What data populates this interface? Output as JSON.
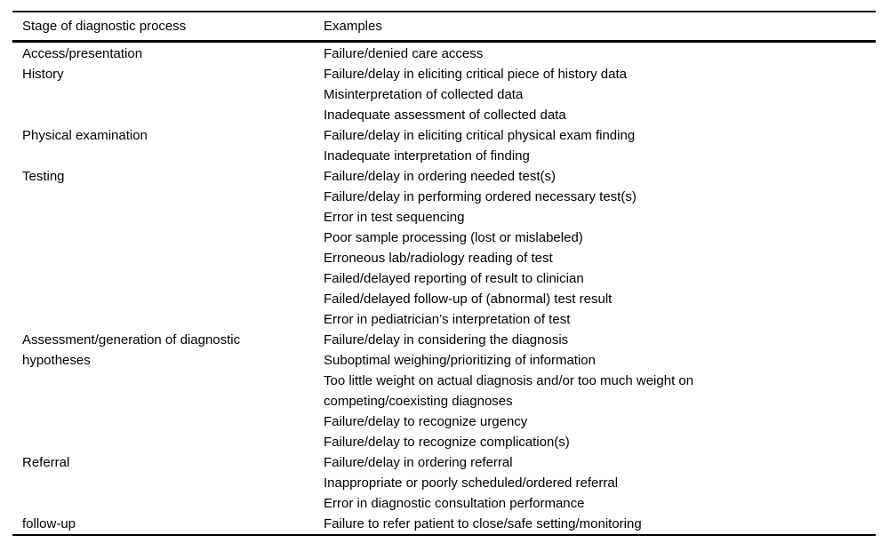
{
  "table": {
    "columns": [
      "Stage of diagnostic process",
      "Examples"
    ],
    "rows": [
      {
        "stage": "Access/presentation",
        "examples": [
          "Failure/denied care access"
        ]
      },
      {
        "stage": "History",
        "examples": [
          "Failure/delay in eliciting critical piece of history data",
          "Misinterpretation of collected data",
          "Inadequate assessment of collected data"
        ]
      },
      {
        "stage": "Physical examination",
        "examples": [
          "Failure/delay in eliciting critical physical exam finding",
          "Inadequate interpretation of finding"
        ]
      },
      {
        "stage": "Testing",
        "examples": [
          "Failure/delay in ordering needed test(s)",
          "Failure/delay in performing ordered necessary test(s)",
          "Error in test sequencing",
          "Poor sample processing (lost or mislabeled)",
          "Erroneous lab/radiology reading of test",
          "Failed/delayed reporting of result to clinician",
          "Failed/delayed follow-up of (abnormal) test result",
          "Error in pediatrician’s interpretation of test"
        ]
      },
      {
        "stage": "Assessment/generation of diagnostic hypotheses",
        "examples": [
          "Failure/delay in considering the diagnosis",
          "Suboptimal weighing/prioritizing of information",
          "Too little weight on actual diagnosis and/or too much weight on\ncompeting/coexisting diagnoses",
          "Failure/delay to recognize urgency",
          "Failure/delay to recognize complication(s)"
        ]
      },
      {
        "stage": "Referral",
        "examples": [
          "Failure/delay in ordering referral",
          "Inappropriate or poorly scheduled/ordered referral",
          "Error in diagnostic consultation performance"
        ]
      },
      {
        "stage": "follow-up",
        "examples": [
          "Failure to refer patient to close/safe setting/monitoring"
        ]
      }
    ]
  },
  "colors": {
    "background": "#ffffff",
    "text": "#000000",
    "rule": "#000000"
  }
}
